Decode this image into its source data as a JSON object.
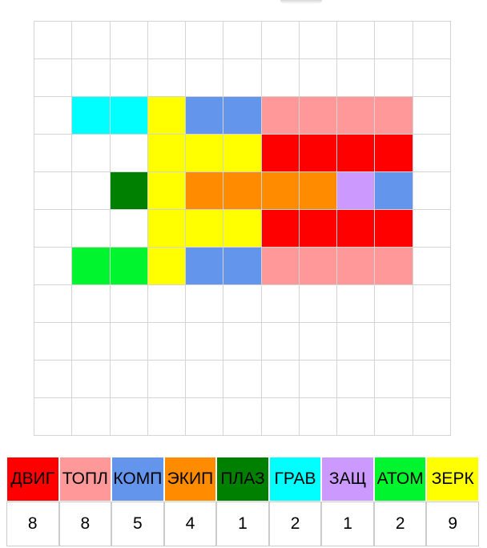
{
  "window": {
    "background": "#ffffff"
  },
  "palette": {
    "dvig": "#ff0000",
    "topl": "#ff9999",
    "komp": "#6495ed",
    "ekip": "#ff8c00",
    "plaz": "#008000",
    "grav": "#00ffff",
    "zashch": "#cc99ff",
    "atom": "#00f52e",
    "zerk": "#ffff00"
  },
  "grid": {
    "rows": 11,
    "columns": 11,
    "line_color": "#d4d4d4",
    "cells": [
      {
        "row": 2,
        "col": 1,
        "part": "grav"
      },
      {
        "row": 2,
        "col": 2,
        "part": "grav"
      },
      {
        "row": 2,
        "col": 3,
        "part": "zerk"
      },
      {
        "row": 2,
        "col": 4,
        "part": "komp"
      },
      {
        "row": 2,
        "col": 5,
        "part": "komp"
      },
      {
        "row": 2,
        "col": 6,
        "part": "topl"
      },
      {
        "row": 2,
        "col": 7,
        "part": "topl"
      },
      {
        "row": 2,
        "col": 8,
        "part": "topl"
      },
      {
        "row": 2,
        "col": 9,
        "part": "topl"
      },
      {
        "row": 3,
        "col": 3,
        "part": "zerk"
      },
      {
        "row": 3,
        "col": 4,
        "part": "zerk"
      },
      {
        "row": 3,
        "col": 5,
        "part": "zerk"
      },
      {
        "row": 3,
        "col": 6,
        "part": "dvig"
      },
      {
        "row": 3,
        "col": 7,
        "part": "dvig"
      },
      {
        "row": 3,
        "col": 8,
        "part": "dvig"
      },
      {
        "row": 3,
        "col": 9,
        "part": "dvig"
      },
      {
        "row": 4,
        "col": 2,
        "part": "plaz"
      },
      {
        "row": 4,
        "col": 3,
        "part": "zerk"
      },
      {
        "row": 4,
        "col": 4,
        "part": "ekip"
      },
      {
        "row": 4,
        "col": 5,
        "part": "ekip"
      },
      {
        "row": 4,
        "col": 6,
        "part": "ekip"
      },
      {
        "row": 4,
        "col": 7,
        "part": "ekip"
      },
      {
        "row": 4,
        "col": 8,
        "part": "zashch"
      },
      {
        "row": 4,
        "col": 9,
        "part": "komp"
      },
      {
        "row": 5,
        "col": 3,
        "part": "zerk"
      },
      {
        "row": 5,
        "col": 4,
        "part": "zerk"
      },
      {
        "row": 5,
        "col": 5,
        "part": "zerk"
      },
      {
        "row": 5,
        "col": 6,
        "part": "dvig"
      },
      {
        "row": 5,
        "col": 7,
        "part": "dvig"
      },
      {
        "row": 5,
        "col": 8,
        "part": "dvig"
      },
      {
        "row": 5,
        "col": 9,
        "part": "dvig"
      },
      {
        "row": 6,
        "col": 1,
        "part": "atom"
      },
      {
        "row": 6,
        "col": 2,
        "part": "atom"
      },
      {
        "row": 6,
        "col": 3,
        "part": "zerk"
      },
      {
        "row": 6,
        "col": 4,
        "part": "komp"
      },
      {
        "row": 6,
        "col": 5,
        "part": "komp"
      },
      {
        "row": 6,
        "col": 6,
        "part": "topl"
      },
      {
        "row": 6,
        "col": 7,
        "part": "topl"
      },
      {
        "row": 6,
        "col": 8,
        "part": "topl"
      },
      {
        "row": 6,
        "col": 9,
        "part": "topl"
      }
    ]
  },
  "legend": {
    "items": [
      {
        "key": "dvig",
        "label": "ДВИГ",
        "count": "8",
        "color": "#ff0000"
      },
      {
        "key": "topl",
        "label": "ТОПЛ",
        "count": "8",
        "color": "#ff9999"
      },
      {
        "key": "komp",
        "label": "КОМП",
        "count": "5",
        "color": "#6495ed"
      },
      {
        "key": "ekip",
        "label": "ЭКИП",
        "count": "4",
        "color": "#ff8c00"
      },
      {
        "key": "plaz",
        "label": "ПЛАЗ",
        "count": "1",
        "color": "#008000"
      },
      {
        "key": "grav",
        "label": "ГРАВ",
        "count": "2",
        "color": "#00ffff"
      },
      {
        "key": "zashch",
        "label": "ЗАЩ",
        "count": "1",
        "color": "#cc99ff"
      },
      {
        "key": "atom",
        "label": "АТОМ",
        "count": "2",
        "color": "#00f52e"
      },
      {
        "key": "zerk",
        "label": "ЗЕРК",
        "count": "9",
        "color": "#ffff00"
      }
    ]
  }
}
